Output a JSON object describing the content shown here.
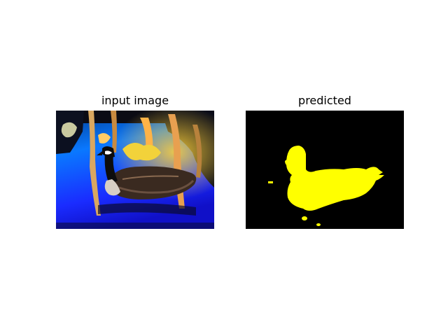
{
  "figure": {
    "panels": [
      {
        "title": "input image",
        "content": "photo of a goose swimming on water with reflections of trees"
      },
      {
        "title": "predicted",
        "content": "binary segmentation mask of the goose"
      }
    ],
    "colors": {
      "background": "#ffffff",
      "water_blue": "#1030ff",
      "mask_foreground": "#ffff00",
      "mask_background": "#000000"
    }
  }
}
